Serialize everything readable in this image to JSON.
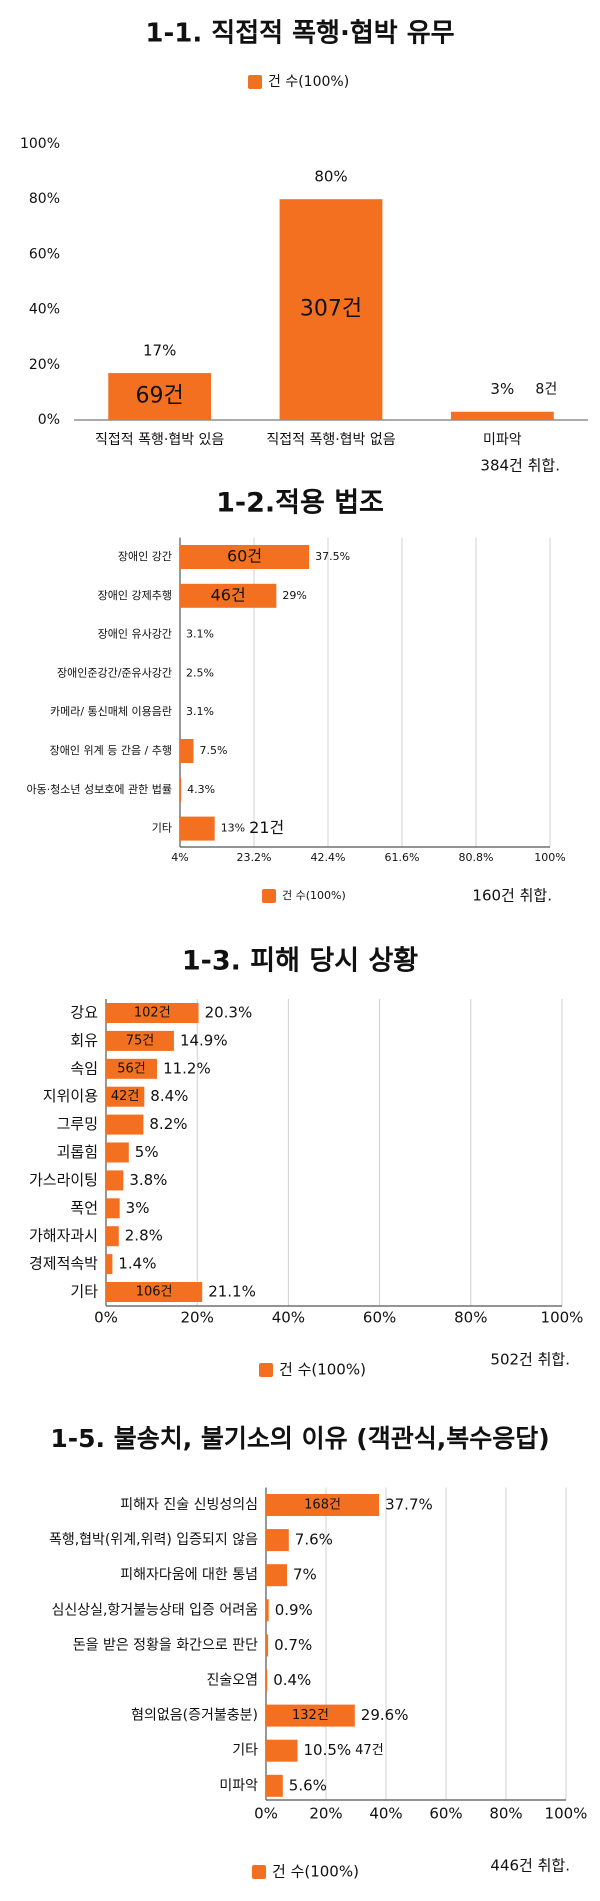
{
  "chart_data": [
    {
      "type": "bar",
      "orientation": "vertical",
      "title": "1-1.  직접적 폭행·협박 유무",
      "categories": [
        "직접적 폭행·협박 있음",
        "직접적 폭행·협박 없음",
        "미파악"
      ],
      "series": [
        {
          "name": "건 수(100%)",
          "color": "#f37021",
          "values": [
            17,
            80,
            3
          ],
          "value_labels": [
            "17%",
            "80%",
            "3%"
          ],
          "count_labels": [
            "69건",
            "307건",
            "8건"
          ]
        }
      ],
      "ylim": [
        0,
        100
      ],
      "yticks": [
        {
          "value": 0,
          "label": "0%"
        },
        {
          "value": 20,
          "label": "20%"
        },
        {
          "value": 40,
          "label": "40%"
        },
        {
          "value": 60,
          "label": "60%"
        },
        {
          "value": 80,
          "label": "80%"
        },
        {
          "value": 100,
          "label": "100%"
        }
      ],
      "grid": false,
      "legend": "top",
      "note": "384건 취합."
    },
    {
      "type": "bar",
      "orientation": "horizontal",
      "title": "1-2.적용 법조",
      "categories": [
        "장애인 강간",
        "장애인 강제추행",
        "장애인 유사강간",
        "장애인준강간/준유사강간",
        "카메라/ 통신매체 이용음란",
        "장애인 위계 등 간음 / 추행",
        "아동·청소년 성보호에 관한 법률",
        "기타"
      ],
      "series": [
        {
          "name": "건 수(100%)",
          "color": "#f37021",
          "values": [
            37.5,
            29,
            3.1,
            2.5,
            3.1,
            7.5,
            4.3,
            13
          ],
          "value_labels": [
            "37.5%",
            "29%",
            "3.1%",
            "2.5%",
            "3.1%",
            "7.5%",
            "4.3%",
            "13%"
          ],
          "count_labels": [
            "60건",
            "46건",
            null,
            null,
            null,
            null,
            null,
            "21건"
          ]
        }
      ],
      "xlim": [
        4,
        100
      ],
      "xticks": [
        {
          "value": 4,
          "label": "4%"
        },
        {
          "value": 23.2,
          "label": "23.2%"
        },
        {
          "value": 42.4,
          "label": "42.4%"
        },
        {
          "value": 61.6,
          "label": "61.6%"
        },
        {
          "value": 80.8,
          "label": "80.8%"
        },
        {
          "value": 100,
          "label": "100%"
        }
      ],
      "grid": true,
      "legend": "bottom",
      "note": "160건 취합."
    },
    {
      "type": "bar",
      "orientation": "horizontal",
      "title": "1-3. 피해 당시 상황",
      "categories": [
        "강요",
        "회유",
        "속임",
        "지위이용",
        "그루밍",
        "괴롭힘",
        "가스라이팅",
        "폭언",
        "가해자과시",
        "경제적속박",
        "기타"
      ],
      "series": [
        {
          "name": "건 수(100%)",
          "color": "#f37021",
          "values": [
            20.3,
            14.9,
            11.2,
            8.4,
            8.2,
            5,
            3.8,
            3,
            2.8,
            1.4,
            21.1
          ],
          "value_labels": [
            "20.3%",
            "14.9%",
            "11.2%",
            "8.4%",
            "8.2%",
            "5%",
            "3.8%",
            "3%",
            "2.8%",
            "1.4%",
            "21.1%"
          ],
          "count_labels": [
            "102건",
            "75건",
            "56건",
            "42건",
            null,
            null,
            null,
            null,
            null,
            null,
            "106건"
          ]
        }
      ],
      "xlim": [
        0,
        100
      ],
      "xticks": [
        {
          "value": 0,
          "label": "0%"
        },
        {
          "value": 20,
          "label": "20%"
        },
        {
          "value": 40,
          "label": "40%"
        },
        {
          "value": 60,
          "label": "60%"
        },
        {
          "value": 80,
          "label": "80%"
        },
        {
          "value": 100,
          "label": "100%"
        }
      ],
      "grid": true,
      "legend": "bottom",
      "note": "502건 취합."
    },
    {
      "type": "bar",
      "orientation": "horizontal",
      "title": "1-5. 불송치, 불기소의 이유 (객관식,복수응답)",
      "categories": [
        "피해자 진술 신빙성의심",
        "폭행,협박(위계,위력) 입증되지 않음",
        "피해자다움에 대한 통념",
        "심신상실,항거불능상태 입증 어려움",
        "돈을 받은 정황을 화간으로 판단",
        "진술오염",
        "혐의없음(증거불충분)",
        "기타",
        "미파악"
      ],
      "series": [
        {
          "name": "건 수(100%)",
          "color": "#f37021",
          "values": [
            37.7,
            7.6,
            7,
            0.9,
            0.7,
            0.4,
            29.6,
            10.5,
            5.6
          ],
          "value_labels": [
            "37.7%",
            "7.6%",
            "7%",
            "0.9%",
            "0.7%",
            "0.4%",
            "29.6%",
            "10.5%",
            "5.6%"
          ],
          "count_labels": [
            "168건",
            null,
            null,
            null,
            null,
            null,
            "132건",
            "47건",
            null
          ]
        }
      ],
      "xlim": [
        0,
        100
      ],
      "xticks": [
        {
          "value": 0,
          "label": "0%"
        },
        {
          "value": 20,
          "label": "20%"
        },
        {
          "value": 40,
          "label": "40%"
        },
        {
          "value": 60,
          "label": "60%"
        },
        {
          "value": 80,
          "label": "80%"
        },
        {
          "value": 100,
          "label": "100%"
        }
      ],
      "grid": true,
      "legend": "bottom",
      "note": "446건 취합."
    }
  ]
}
